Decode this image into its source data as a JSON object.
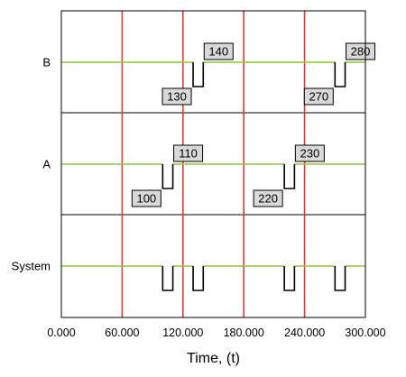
{
  "chart_data": {
    "type": "line",
    "xlabel": "Time, (t)",
    "xlim": [
      0,
      300
    ],
    "x_ticks": [
      "0.000",
      "60.000",
      "120.000",
      "180.000",
      "240.000",
      "300.000"
    ],
    "grid": true,
    "reference_lines": {
      "x": [
        60,
        120,
        180,
        240
      ],
      "color": "#e53935"
    },
    "colors": {
      "up": "#8bc53f",
      "down": "#000000",
      "reference": "#e53935",
      "frame": "#000000",
      "label_box": "#d9d9d9"
    },
    "rows": [
      {
        "name": "B",
        "failures": [
          [
            130,
            140
          ],
          [
            270,
            280
          ]
        ],
        "labels": [
          {
            "value": "130",
            "anchor_x": 130,
            "level": "down"
          },
          {
            "value": "140",
            "anchor_x": 140,
            "level": "up"
          },
          {
            "value": "270",
            "anchor_x": 270,
            "level": "down"
          },
          {
            "value": "280",
            "anchor_x": 280,
            "level": "up"
          }
        ]
      },
      {
        "name": "A",
        "failures": [
          [
            100,
            110
          ],
          [
            220,
            230
          ]
        ],
        "labels": [
          {
            "value": "100",
            "anchor_x": 100,
            "level": "down"
          },
          {
            "value": "110",
            "anchor_x": 110,
            "level": "up"
          },
          {
            "value": "220",
            "anchor_x": 220,
            "level": "down"
          },
          {
            "value": "230",
            "anchor_x": 230,
            "level": "up"
          }
        ]
      },
      {
        "name": "System",
        "failures": [
          [
            100,
            110
          ],
          [
            130,
            140
          ],
          [
            220,
            230
          ],
          [
            270,
            280
          ]
        ],
        "labels": []
      }
    ]
  }
}
